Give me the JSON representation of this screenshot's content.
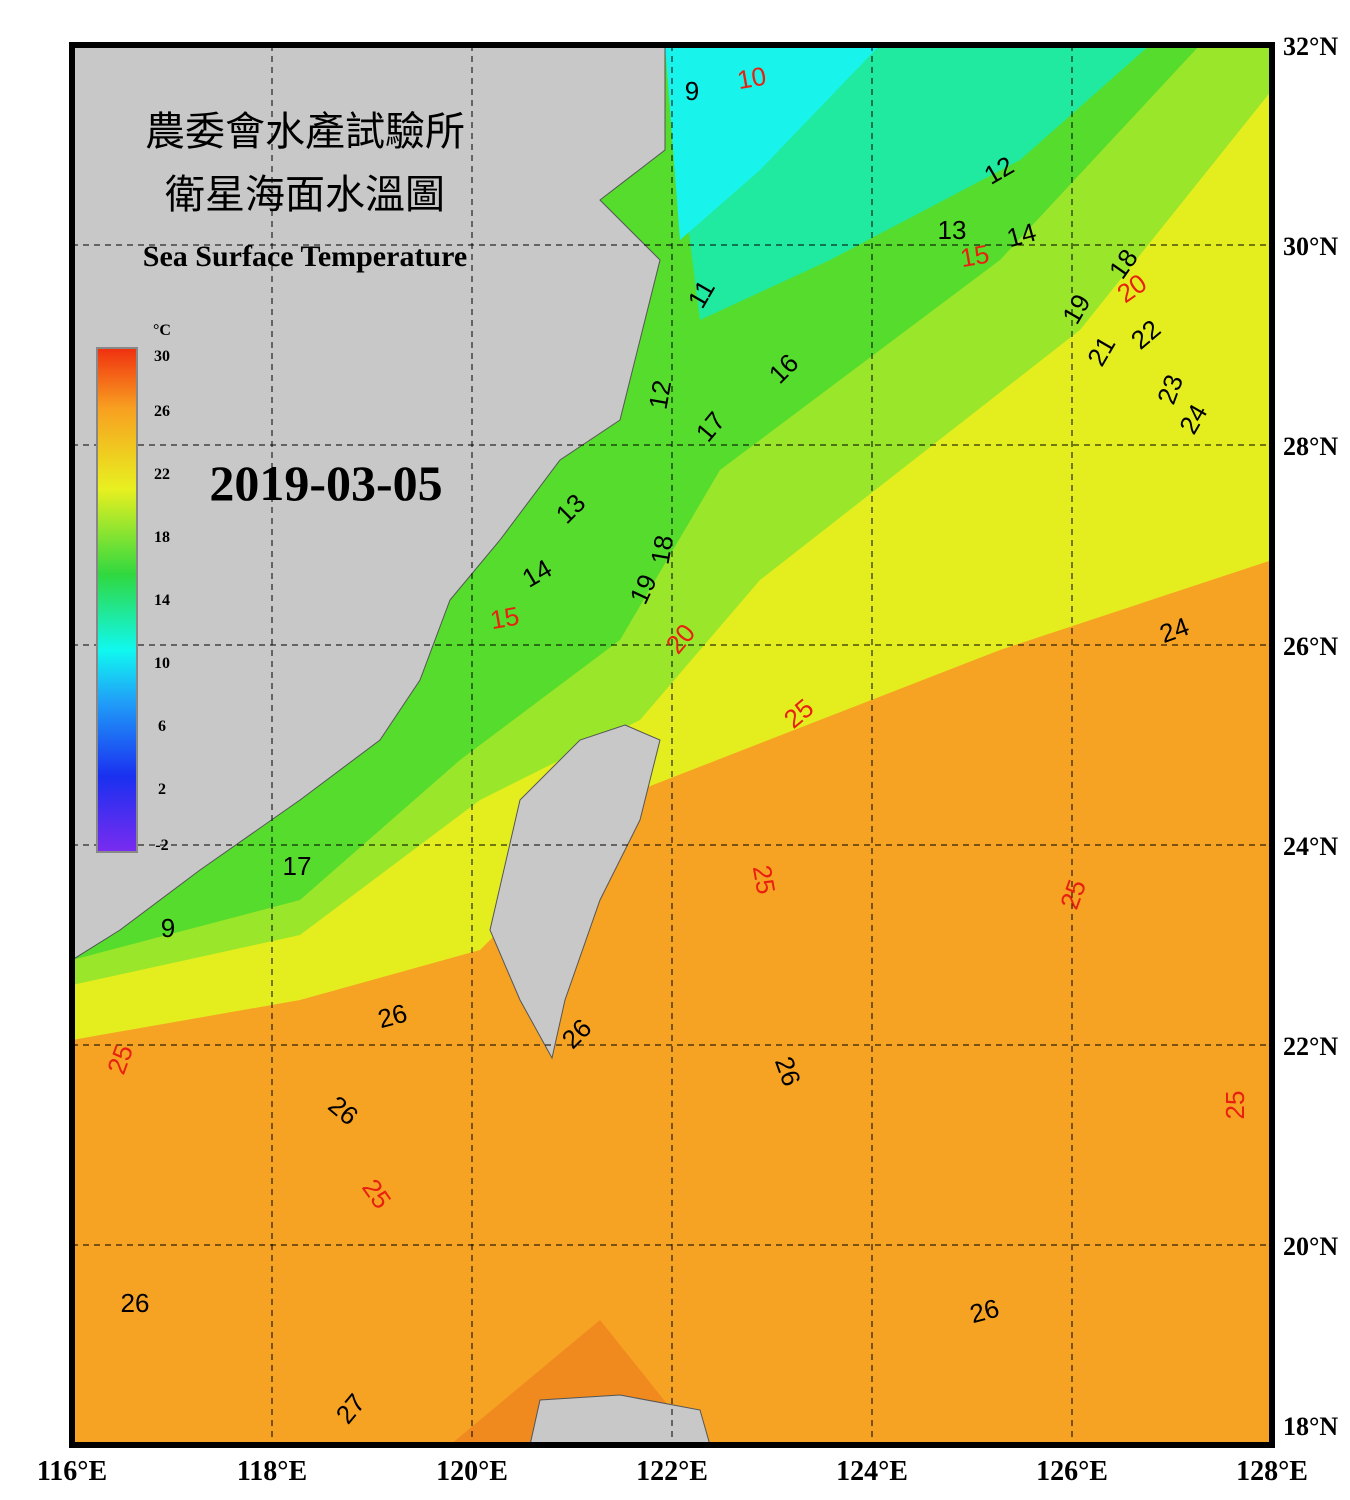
{
  "title_zh": [
    "農委會水產試驗所",
    "衛星海面水溫圖"
  ],
  "title_en": "Sea Surface Temperature",
  "date": "2019-03-05",
  "xlim": [
    116,
    128
  ],
  "ylim": [
    18,
    32
  ],
  "xticks": [
    {
      "value": 116,
      "label": "116°E"
    },
    {
      "value": 118,
      "label": "118°E"
    },
    {
      "value": 120,
      "label": "120°E"
    },
    {
      "value": 122,
      "label": "122°E"
    },
    {
      "value": 124,
      "label": "124°E"
    },
    {
      "value": 126,
      "label": "126°E"
    },
    {
      "value": 128,
      "label": "128°E"
    }
  ],
  "yticks": [
    {
      "value": 18,
      "label": "18°N"
    },
    {
      "value": 20,
      "label": "20°N"
    },
    {
      "value": 22,
      "label": "22°N"
    },
    {
      "value": 24,
      "label": "24°N"
    },
    {
      "value": 26,
      "label": "26°N"
    },
    {
      "value": 28,
      "label": "28°N"
    },
    {
      "value": 30,
      "label": "30°N"
    },
    {
      "value": 32,
      "label": "32°N"
    }
  ],
  "colorbar": {
    "unit": "°C",
    "lim": [
      -2,
      30
    ],
    "ticks": [
      30,
      26,
      22,
      18,
      14,
      10,
      6,
      2,
      -2
    ]
  },
  "contour_labels": {
    "red": [
      10,
      15,
      20,
      15,
      20,
      25,
      25,
      25,
      25,
      25,
      25
    ],
    "black": [
      9,
      12,
      13,
      14,
      18,
      19,
      21,
      22,
      23,
      24,
      11,
      16,
      17,
      12,
      13,
      14,
      18,
      19,
      24,
      26,
      26,
      26,
      26,
      26,
      26,
      27,
      17,
      9
    ]
  }
}
